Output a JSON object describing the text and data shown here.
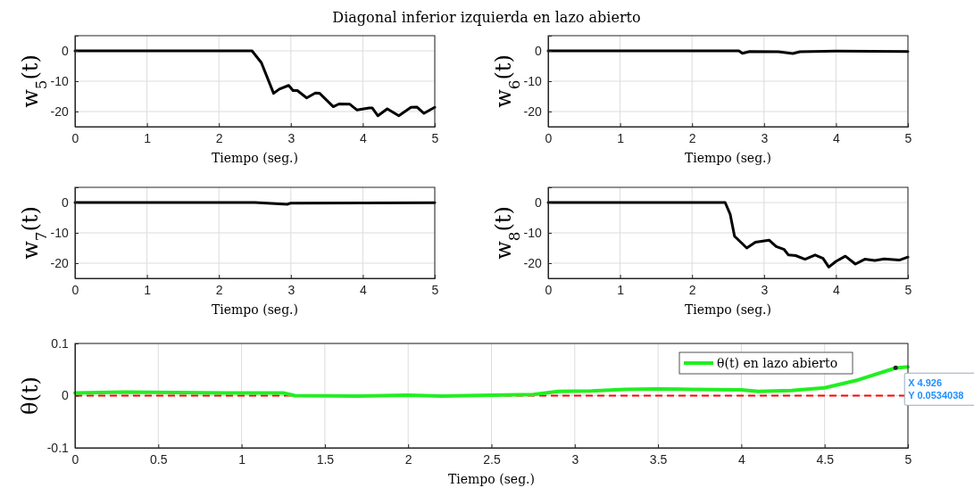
{
  "chart_data": [
    {
      "type": "line",
      "title": "Diagonal inferior izquierda en lazo abierto",
      "xlabel": "Tiempo (seg.)",
      "ylabel": "w$_{5}$(t)",
      "xlim": [
        0,
        5
      ],
      "xticks": [
        0,
        1,
        2,
        3,
        4,
        5
      ],
      "ylim": [
        -25,
        5
      ],
      "yticks": [
        -20,
        -10,
        0
      ],
      "grid": true,
      "series": [
        {
          "color": "#000000",
          "x": [
            0,
            2.46,
            2.59,
            2.76,
            2.84,
            2.97,
            3.03,
            3.09,
            3.22,
            3.34,
            3.4,
            3.59,
            3.67,
            3.82,
            3.92,
            4.09,
            4.13,
            4.21,
            4.34,
            4.5,
            4.67,
            4.75,
            4.85,
            5
          ],
          "values": [
            0,
            0,
            -3.9,
            -14,
            -12.6,
            -11.4,
            -13.1,
            -13.1,
            -15.5,
            -13.9,
            -14,
            -18.4,
            -17.5,
            -17.6,
            -19.5,
            -18.8,
            -18.8,
            -21.4,
            -19.1,
            -21.4,
            -18.6,
            -18.5,
            -20.6,
            -18.6
          ]
        }
      ]
    },
    {
      "type": "line",
      "xlabel": "Tiempo (seg.)",
      "ylabel": "w$_{6}$(t)",
      "xlim": [
        0,
        5
      ],
      "xticks": [
        0,
        1,
        2,
        3,
        4,
        5
      ],
      "ylim": [
        -25,
        5
      ],
      "yticks": [
        -20,
        -10,
        0
      ],
      "grid": true,
      "series": [
        {
          "color": "#000000",
          "x": [
            0,
            2.65,
            2.7,
            2.8,
            3.2,
            3.4,
            3.5,
            4,
            5
          ],
          "values": [
            0,
            0,
            -0.8,
            -0.2,
            -0.3,
            -0.9,
            -0.3,
            -0.1,
            -0.2
          ]
        }
      ]
    },
    {
      "type": "line",
      "xlabel": "Tiempo (seg.)",
      "ylabel": "w$_{7}$(t)",
      "xlim": [
        0,
        5
      ],
      "xticks": [
        0,
        1,
        2,
        3,
        4,
        5
      ],
      "ylim": [
        -25,
        5
      ],
      "yticks": [
        -20,
        -10,
        0
      ],
      "grid": true,
      "series": [
        {
          "color": "#000000",
          "x": [
            0,
            2.5,
            2.95,
            3,
            5
          ],
          "values": [
            0,
            0,
            -0.6,
            -0.2,
            -0.1
          ]
        }
      ]
    },
    {
      "type": "line",
      "xlabel": "Tiempo (seg.)",
      "ylabel": "w$_{8}$(t)",
      "xlim": [
        0,
        5
      ],
      "xticks": [
        0,
        1,
        2,
        3,
        4,
        5
      ],
      "ylim": [
        -25,
        5
      ],
      "yticks": [
        -20,
        -10,
        0
      ],
      "grid": true,
      "series": [
        {
          "color": "#000000",
          "x": [
            0,
            2.46,
            2.53,
            2.59,
            2.76,
            2.88,
            3.07,
            3.17,
            3.28,
            3.34,
            3.44,
            3.57,
            3.71,
            3.82,
            3.9,
            4,
            4.13,
            4.27,
            4.4,
            4.54,
            4.67,
            4.88,
            5
          ],
          "values": [
            0,
            0,
            -3.9,
            -11.1,
            -15,
            -13.1,
            -12.4,
            -14.5,
            -15.5,
            -17.3,
            -17.5,
            -18.7,
            -17.3,
            -18.4,
            -21.3,
            -19.4,
            -17.7,
            -20.3,
            -18.7,
            -19.1,
            -18.6,
            -19,
            -18
          ]
        }
      ]
    },
    {
      "type": "line",
      "xlabel": "Tiempo (seg.)",
      "ylabel": "θ(t)",
      "xlim": [
        0,
        5
      ],
      "xticks": [
        0,
        0.5,
        1,
        1.5,
        2,
        2.5,
        3,
        3.5,
        4,
        4.5,
        5
      ],
      "ylim": [
        -0.1,
        0.1
      ],
      "yticks": [
        -0.1,
        0,
        0.1
      ],
      "grid": true,
      "legend": "top right",
      "ref_lines": [
        {
          "axis": "y",
          "value": 0,
          "color": "#ff0000",
          "line_style": "dashed"
        }
      ],
      "annotations": [
        {
          "text": "X 4.926 Y 0.0534038",
          "x": 4.926,
          "y": 0.0534038
        }
      ],
      "series": [
        {
          "name": "θ(t) en lazo abierto",
          "color": "#22ee22",
          "x": [
            0,
            0.3,
            0.6,
            1,
            1.25,
            1.32,
            1.7,
            2,
            2.2,
            2.5,
            2.75,
            2.9,
            3.1,
            3.3,
            3.5,
            3.7,
            4,
            4.1,
            4.3,
            4.5,
            4.7,
            4.926,
            5
          ],
          "values": [
            0.005,
            0.007,
            0.006,
            0.005,
            0.005,
            0,
            -0.001,
            0.001,
            -0.001,
            0.001,
            0.002,
            0.008,
            0.009,
            0.012,
            0.013,
            0.012,
            0.011,
            0.008,
            0.01,
            0.015,
            0.03,
            0.053,
            0.055
          ]
        }
      ]
    }
  ]
}
